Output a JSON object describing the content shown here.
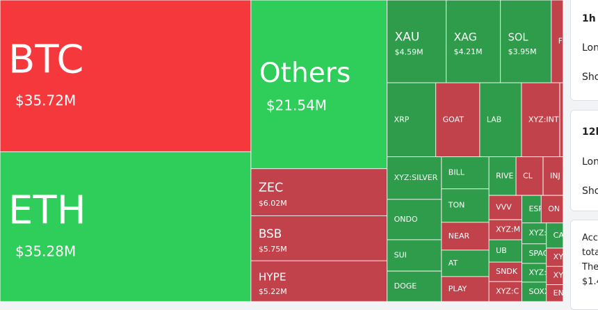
{
  "chart_data": {
    "type": "treemap",
    "categories": [
      "BTC",
      "ETH",
      "Others",
      "ZEC",
      "BSB",
      "HYPE",
      "XAU",
      "XAG",
      "SOL",
      "F",
      "XRP",
      "GOAT",
      "LAB",
      "XYZ:INT",
      null,
      "XYZ:SILVER",
      "ONDO",
      "SUI",
      "DOGE",
      "BILL",
      "TON",
      "NEAR",
      "AT",
      "PLAY",
      "RIVE",
      "CL",
      "INJ",
      "VVV",
      "XYZ:M",
      "UB",
      "SNDK",
      "XYZ:C",
      "ESP",
      "ON",
      "XYZ:",
      "SPAC",
      "XYZ:",
      "SOXX",
      "CA",
      "XY",
      "XY",
      "EN"
    ],
    "values": [
      35.72,
      35.28,
      21.54,
      6.02,
      5.75,
      5.22,
      4.59,
      4.21,
      3.95,
      0.93,
      3.38,
      3.05,
      2.9,
      2.66,
      0.24,
      2.17,
      2.06,
      1.6,
      1.56,
      1.43,
      1.49,
      1.24,
      1.18,
      1.12,
      0.98,
      0.98,
      0.73,
      0.75,
      0.62,
      0.69,
      0.6,
      0.62,
      0.5,
      0.57,
      0.48,
      0.45,
      0.43,
      0.45,
      0.4,
      0.29,
      0.29,
      0.27
    ],
    "value_labels": [
      "$35.72M",
      "$35.28M",
      "$21.54M",
      "$6.02M",
      "$5.75M",
      "$5.22M",
      "$4.59M",
      "$4.21M",
      "$3.95M",
      null,
      null,
      null,
      null,
      null,
      null,
      null,
      null,
      null,
      null,
      null,
      null,
      null,
      null,
      null,
      null,
      null,
      null,
      null,
      null,
      null,
      null,
      null,
      null,
      null,
      null,
      null,
      null,
      null,
      null,
      null,
      null,
      null
    ],
    "colors": [
      "#f5383c",
      "#2fcd5a",
      "#2fcd5a",
      "#c1424a",
      "#c1424a",
      "#c1424a",
      "#2f9c4b",
      "#2f9c4b",
      "#2f9c4b",
      "#c1424a",
      "#2f9c4b",
      "#c1424a",
      "#2f9c4b",
      "#c1424a",
      "#c1424a",
      "#2f9c4b",
      "#2f9c4b",
      "#2f9c4b",
      "#2f9c4b",
      "#2f9c4b",
      "#2f9c4b",
      "#c1424a",
      "#2f9c4b",
      "#c1424a",
      "#2f9c4b",
      "#c1424a",
      "#c1424a",
      "#c1424a",
      "#c1424a",
      "#2f9c4b",
      "#c1424a",
      "#c1424a",
      "#2f9c4b",
      "#c1424a",
      "#2f9c4b",
      "#2f9c4b",
      "#2f9c4b",
      "#2f9c4b",
      "#2f9c4b",
      "#c1424a",
      "#c1424a",
      "#c1424a"
    ]
  },
  "panel": {
    "cards": [
      {
        "title": "1h",
        "lines": [
          "Lon",
          "Sho"
        ]
      },
      {
        "title": "12h",
        "lines": [
          "Lon",
          "Sho"
        ]
      },
      {
        "lines": [
          "Acc",
          "tota",
          "The",
          "$1.4"
        ]
      }
    ]
  }
}
